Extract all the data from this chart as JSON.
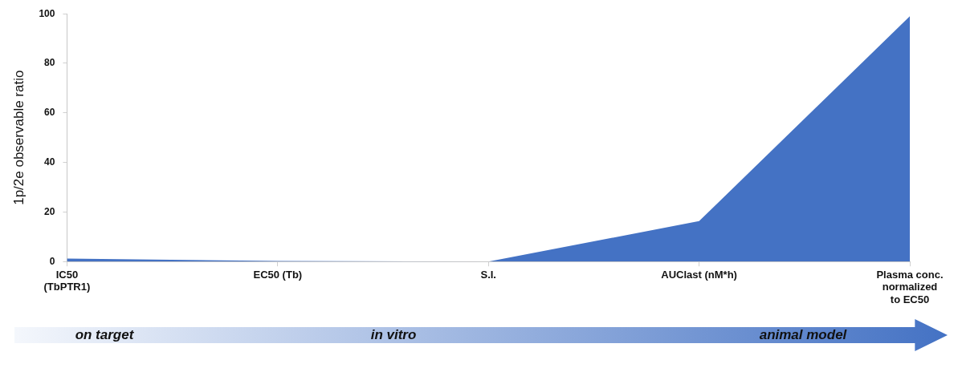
{
  "chart_data": {
    "type": "area",
    "ylabel": "1p/2e observable ratio",
    "categories": [
      "IC50\n(TbPTR1)",
      "EC50 (Tb)",
      "S.I.",
      "AUClast (nM*h)",
      "Plasma conc.\nnormalized\nto EC50"
    ],
    "series": [
      {
        "color": "#4472c4",
        "values": [
          1.2,
          0.2,
          0,
          16.3,
          99
        ]
      }
    ],
    "ylim": [
      0,
      100
    ],
    "yticks": [
      0,
      20,
      40,
      60,
      80,
      100
    ],
    "grid": false,
    "legend": false,
    "marker": "none",
    "annotations": [
      "on target",
      "in vitro",
      "animal model"
    ]
  }
}
